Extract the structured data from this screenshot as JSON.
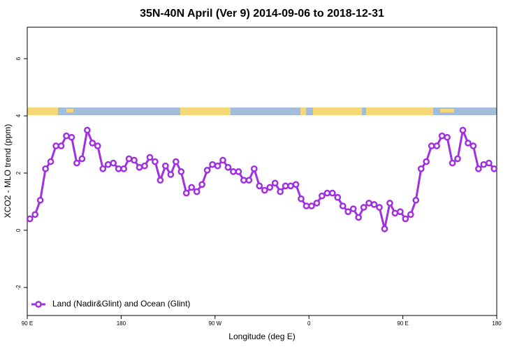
{
  "chart_data": {
    "type": "line",
    "title": "35N-40N April (Ver 9)   2014-09-06 to 2018-12-31",
    "x_label": "Longitude (deg E)",
    "y_label": "XCO2 - MLO trend (ppm)",
    "x": [
      92.5,
      97.5,
      102.5,
      107.5,
      112.5,
      117.5,
      122.5,
      127.5,
      132.5,
      137.5,
      142.5,
      147.5,
      152.5,
      157.5,
      162.5,
      167.5,
      172.5,
      177.5,
      182.5,
      187.5,
      192.5,
      197.5,
      202.5,
      207.5,
      212.5,
      217.5,
      222.5,
      227.5,
      232.5,
      237.5,
      242.5,
      247.5,
      252.5,
      257.5,
      262.5,
      267.5,
      272.5,
      277.5,
      282.5,
      287.5,
      292.5,
      297.5,
      302.5,
      307.5,
      312.5,
      317.5,
      322.5,
      327.5,
      332.5,
      337.5,
      342.5,
      347.5,
      352.5,
      357.5,
      362.5,
      367.5,
      372.5,
      377.5,
      382.5,
      387.5,
      392.5,
      397.5,
      402.5,
      407.5,
      412.5,
      417.5,
      422.5,
      427.5,
      432.5,
      437.5,
      442.5,
      447.5,
      452.5,
      457.5,
      462.5,
      467.5,
      472.5,
      477.5,
      482.5,
      487.5,
      492.5,
      497.5,
      502.5,
      507.5,
      512.5,
      517.5,
      522.5,
      527.5,
      532.5,
      537.5
    ],
    "series": [
      {
        "name": "Land (Nadir&Glint) and Ocean (Glint)",
        "color": "#a030e0",
        "values": [
          0.4,
          0.55,
          1.05,
          2.15,
          2.4,
          2.95,
          2.95,
          3.3,
          3.25,
          2.35,
          2.5,
          3.5,
          3.05,
          2.95,
          2.15,
          2.3,
          2.35,
          2.15,
          2.15,
          2.5,
          2.45,
          2.2,
          2.25,
          2.55,
          2.4,
          1.75,
          2.25,
          1.95,
          2.4,
          2.05,
          1.3,
          1.5,
          1.35,
          1.6,
          2.1,
          2.3,
          2.25,
          2.45,
          2.2,
          2.05,
          2.05,
          1.75,
          1.75,
          2.15,
          1.55,
          1.4,
          1.5,
          1.65,
          1.35,
          1.55,
          1.55,
          1.6,
          1.1,
          0.85,
          0.85,
          0.95,
          1.2,
          1.3,
          1.3,
          1.15,
          0.85,
          0.65,
          0.75,
          0.45,
          0.8,
          0.95,
          0.9,
          0.8,
          0.05,
          0.95,
          0.6,
          0.65,
          0.4,
          0.55,
          1.05,
          2.15,
          2.4,
          2.95,
          2.95,
          3.3,
          3.25,
          2.35,
          2.5,
          3.5,
          3.05,
          2.95,
          2.15,
          2.3,
          2.35,
          2.15
        ]
      }
    ],
    "xlim": [
      90,
      540
    ],
    "ylim": [
      -2.98,
      7.1
    ],
    "xticks": [
      {
        "value": 90,
        "label": "90 E"
      },
      180,
      {
        "value": 270,
        "label": "90 W"
      },
      {
        "value": 360,
        "label": "0"
      },
      {
        "value": 450,
        "label": "90 E"
      },
      {
        "value": 540,
        "label": "180"
      }
    ],
    "yticks": [
      -2,
      0,
      2,
      4,
      6
    ],
    "legend": "bottomleft"
  }
}
